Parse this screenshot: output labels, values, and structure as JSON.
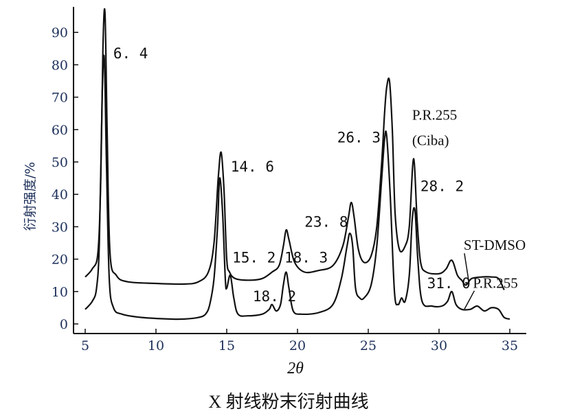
{
  "chart_data": {
    "type": "line",
    "caption": "X 射线粉末衍射曲线",
    "xlabel": "2θ",
    "ylabel": "衍射强度/%",
    "xlim": [
      5,
      35
    ],
    "ylim": [
      0,
      95
    ],
    "x_ticks": [
      5,
      10,
      15,
      20,
      25,
      30,
      35
    ],
    "y_ticks": [
      0,
      10,
      20,
      30,
      40,
      50,
      60,
      70,
      80,
      90
    ],
    "series": [
      {
        "name": "ST-DMSO",
        "color": "#111111",
        "points": [
          [
            5.0,
            14.5
          ],
          [
            5.5,
            17
          ],
          [
            5.9,
            22
          ],
          [
            6.1,
            45
          ],
          [
            6.25,
            85
          ],
          [
            6.4,
            96
          ],
          [
            6.55,
            60
          ],
          [
            6.75,
            22
          ],
          [
            7.2,
            15
          ],
          [
            8,
            13
          ],
          [
            10,
            12.5
          ],
          [
            12,
            12.3
          ],
          [
            13,
            13
          ],
          [
            13.7,
            16
          ],
          [
            14.1,
            25
          ],
          [
            14.4,
            45
          ],
          [
            14.6,
            53
          ],
          [
            14.8,
            42
          ],
          [
            15.0,
            20
          ],
          [
            15.2,
            16
          ],
          [
            15.6,
            14
          ],
          [
            16.5,
            13.5
          ],
          [
            17.5,
            14
          ],
          [
            18.2,
            16
          ],
          [
            18.7,
            18
          ],
          [
            19.0,
            24
          ],
          [
            19.2,
            29
          ],
          [
            19.4,
            26
          ],
          [
            19.8,
            19
          ],
          [
            20.5,
            16
          ],
          [
            21.5,
            16.5
          ],
          [
            22.5,
            18
          ],
          [
            23.2,
            24
          ],
          [
            23.6,
            33
          ],
          [
            23.8,
            37.5
          ],
          [
            24.0,
            33
          ],
          [
            24.3,
            23
          ],
          [
            24.7,
            19
          ],
          [
            25.2,
            21
          ],
          [
            25.6,
            30
          ],
          [
            25.95,
            50
          ],
          [
            26.15,
            65
          ],
          [
            26.3,
            73
          ],
          [
            26.5,
            75
          ],
          [
            26.7,
            60
          ],
          [
            26.9,
            34
          ],
          [
            27.2,
            23
          ],
          [
            27.6,
            24
          ],
          [
            27.9,
            30
          ],
          [
            28.2,
            51
          ],
          [
            28.45,
            32
          ],
          [
            28.7,
            19
          ],
          [
            29.1,
            16
          ],
          [
            30.0,
            15.5
          ],
          [
            30.5,
            17
          ],
          [
            30.8,
            19.5
          ],
          [
            31.0,
            19
          ],
          [
            31.3,
            15
          ],
          [
            31.6,
            13.5
          ],
          [
            31.9,
            12
          ],
          [
            32.3,
            14
          ],
          [
            33.0,
            14.5
          ],
          [
            33.7,
            14.5
          ],
          [
            34.2,
            14
          ],
          [
            34.6,
            10.5
          ]
        ]
      },
      {
        "name": "P.R.255",
        "color": "#111111",
        "points": [
          [
            5.0,
            4.5
          ],
          [
            5.5,
            7
          ],
          [
            5.8,
            11
          ],
          [
            6.0,
            25
          ],
          [
            6.2,
            70
          ],
          [
            6.35,
            82
          ],
          [
            6.5,
            50
          ],
          [
            6.7,
            14
          ],
          [
            7.0,
            5
          ],
          [
            7.6,
            3
          ],
          [
            9,
            2
          ],
          [
            11,
            1.5
          ],
          [
            12,
            1.5
          ],
          [
            13,
            2
          ],
          [
            13.5,
            3
          ],
          [
            13.8,
            6
          ],
          [
            14.1,
            14
          ],
          [
            14.35,
            30
          ],
          [
            14.5,
            45
          ],
          [
            14.7,
            35
          ],
          [
            14.9,
            14
          ],
          [
            15.0,
            11
          ],
          [
            15.25,
            15
          ],
          [
            15.5,
            8
          ],
          [
            15.8,
            3
          ],
          [
            16.5,
            2.5
          ],
          [
            17.5,
            3
          ],
          [
            18.0,
            4.5
          ],
          [
            18.2,
            6
          ],
          [
            18.5,
            4
          ],
          [
            18.8,
            6
          ],
          [
            19.0,
            12
          ],
          [
            19.2,
            16
          ],
          [
            19.4,
            11
          ],
          [
            19.7,
            4
          ],
          [
            20.3,
            3
          ],
          [
            21.5,
            3.5
          ],
          [
            22.5,
            6
          ],
          [
            23.1,
            14
          ],
          [
            23.5,
            24
          ],
          [
            23.7,
            28
          ],
          [
            23.9,
            24
          ],
          [
            24.1,
            11
          ],
          [
            24.4,
            8
          ],
          [
            24.7,
            8
          ],
          [
            25.2,
            12
          ],
          [
            25.6,
            24
          ],
          [
            25.95,
            45
          ],
          [
            26.15,
            57
          ],
          [
            26.3,
            58
          ],
          [
            26.55,
            40
          ],
          [
            26.85,
            10
          ],
          [
            27.1,
            6
          ],
          [
            27.35,
            8
          ],
          [
            27.6,
            7
          ],
          [
            27.9,
            15
          ],
          [
            28.1,
            32
          ],
          [
            28.3,
            35
          ],
          [
            28.5,
            20
          ],
          [
            28.8,
            7
          ],
          [
            29.5,
            5.5
          ],
          [
            30.2,
            5.5
          ],
          [
            30.6,
            7
          ],
          [
            30.9,
            10
          ],
          [
            31.2,
            6
          ],
          [
            31.6,
            4.5
          ],
          [
            32.2,
            4.5
          ],
          [
            32.7,
            5.5
          ],
          [
            33.2,
            4
          ],
          [
            33.7,
            5
          ],
          [
            34.2,
            4.5
          ],
          [
            34.6,
            2
          ],
          [
            35.0,
            1.5
          ]
        ]
      }
    ],
    "peak_labels": [
      {
        "text": "6. 4",
        "x": 6.4,
        "y": 82
      },
      {
        "text": "14. 6",
        "x": 14.6,
        "y": 47
      },
      {
        "text": "15. 2",
        "x": 15.2,
        "y": 19
      },
      {
        "text": "18. 3",
        "x": 18.3,
        "y": 19
      },
      {
        "text": "18. 2",
        "x": 18.2,
        "y": 7
      },
      {
        "text": "23. 8",
        "x": 23.8,
        "y": 30
      },
      {
        "text": "26. 3",
        "x": 26.3,
        "y": 56
      },
      {
        "text": "28. 2",
        "x": 28.2,
        "y": 41
      },
      {
        "text": "31. 0",
        "x": 31.0,
        "y": 11
      }
    ],
    "annotations": [
      {
        "text": "P.R.255",
        "line2": "(Ciba)",
        "x": 28.2,
        "y": 63
      },
      {
        "text": "ST-DMSO",
        "x": 31.5,
        "y": 22
      },
      {
        "text": "P.R.255",
        "x": 32.3,
        "y": 6
      }
    ]
  }
}
